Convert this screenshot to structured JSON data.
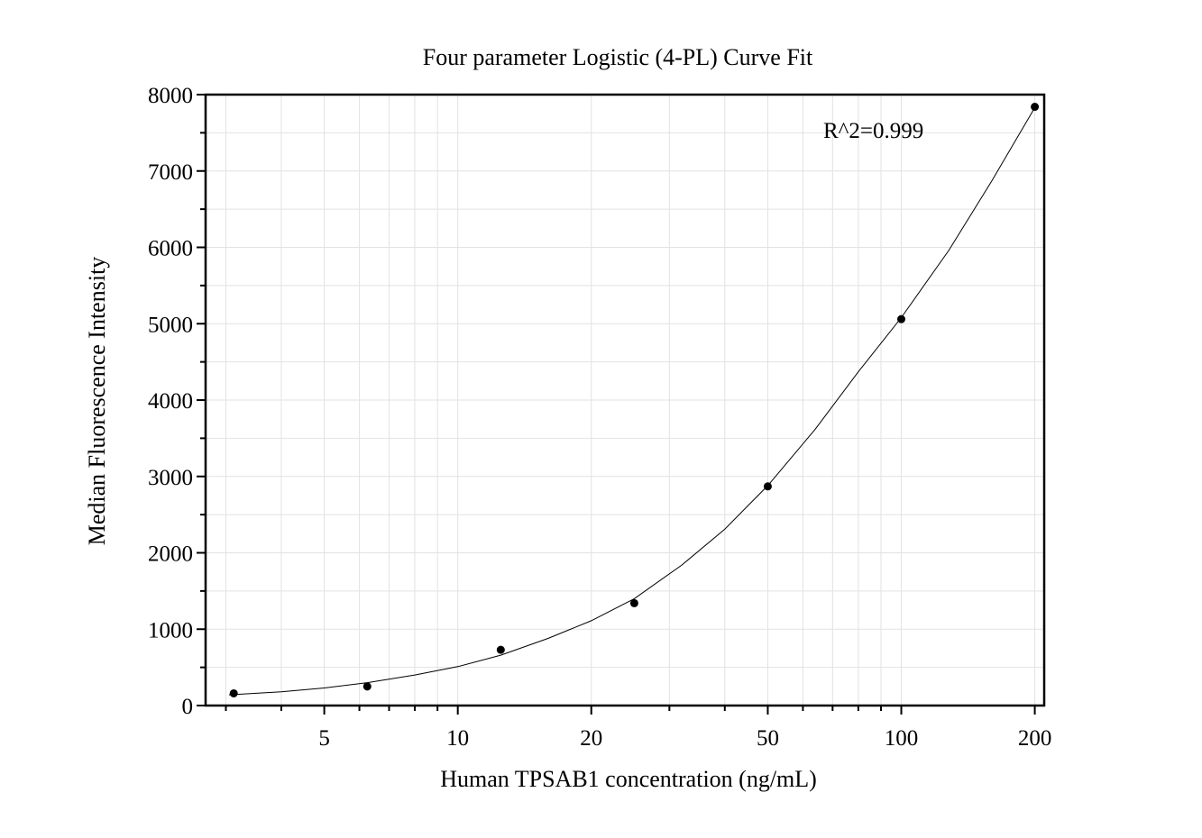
{
  "chart_data": {
    "type": "scatter",
    "title": "Four parameter Logistic (4-PL) Curve Fit",
    "xlabel": "Human TPSAB1 concentration (ng/mL)",
    "ylabel": "Median Fluorescence Intensity",
    "x_scale": "log",
    "xlim": [
      2.7,
      210
    ],
    "ylim": [
      0,
      8000
    ],
    "x_ticks": [
      5,
      10,
      20,
      50,
      100,
      200
    ],
    "x_tick_labels": [
      "5",
      "10",
      "20",
      "50",
      "100",
      "200"
    ],
    "y_ticks": [
      0,
      1000,
      2000,
      3000,
      4000,
      5000,
      6000,
      7000,
      8000
    ],
    "y_tick_labels": [
      "0",
      "1000",
      "2000",
      "3000",
      "4000",
      "5000",
      "6000",
      "7000",
      "8000"
    ],
    "grid": true,
    "annotation": "R^2=0.999",
    "series": [
      {
        "x": [
          3.125,
          6.25,
          12.5,
          25,
          50,
          100,
          200
        ],
        "y": [
          160,
          250,
          730,
          1340,
          2870,
          5060,
          7840
        ]
      }
    ],
    "fit_curve": {
      "model": "4-PL",
      "x": [
        3.05,
        4,
        5,
        6.25,
        8,
        10,
        12.5,
        16,
        20,
        25,
        32,
        40,
        50,
        64,
        80,
        100,
        128,
        160,
        200
      ],
      "y": [
        140,
        180,
        230,
        300,
        400,
        510,
        660,
        880,
        1110,
        1400,
        1840,
        2310,
        2880,
        3620,
        4370,
        5080,
        5960,
        6870,
        7830
      ]
    },
    "colors": {
      "points": "#000000",
      "curve": "#000000",
      "grid": "#e2e2e2",
      "axes": "#000000"
    }
  }
}
